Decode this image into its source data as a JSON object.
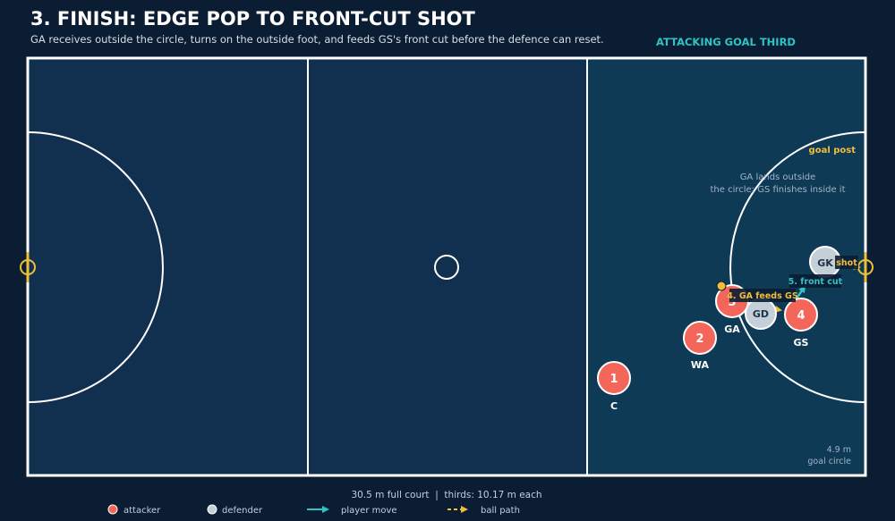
{
  "header": {
    "title": "3. FINISH: EDGE POP TO FRONT-CUT SHOT",
    "subtitle": "GA receives outside the circle, turns on the outside foot, and feeds GS's front cut before the defence can reset.",
    "third_label": "ATTACKING GOAL THIRD"
  },
  "court": {
    "goal_post_label": "goal post",
    "note_line1": "GA lands outside",
    "note_line2": "the circle; GS finishes inside it",
    "circle_size": "4.9 m",
    "circle_label": "goal circle",
    "dimensions": "30.5 m full court  |  thirds: 10.17 m each"
  },
  "players": {
    "c": {
      "number": "1",
      "label": "C"
    },
    "wa": {
      "number": "2",
      "label": "WA"
    },
    "ga": {
      "number": "3",
      "label": "GA"
    },
    "gs": {
      "number": "4",
      "label": "GS"
    },
    "gd": {
      "label": "GD"
    },
    "gk": {
      "label": "GK"
    }
  },
  "annotations": {
    "feed": "4. GA feeds GS",
    "cut": "5. front cut",
    "shot": "shot"
  },
  "legend": {
    "attacker": "attacker",
    "defender": "defender",
    "player_move": "player move",
    "ball_path": "ball path"
  },
  "colors": {
    "attacker": "#f4665a",
    "defender": "#c5cfd8",
    "move": "#2ec4c4",
    "ball": "#f0bf3a"
  }
}
